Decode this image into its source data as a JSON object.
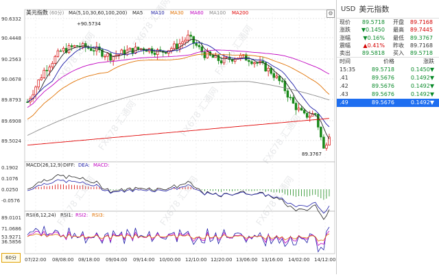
{
  "main_legend": {
    "title": "美元指数",
    "period_hint": "(60分)",
    "ma_label": "MA(5,10,30,60,100,200)",
    "ma5": "MA5",
    "ma10": "MA10",
    "ma30": "MA30",
    "ma60": "MA60",
    "ma100": "MA100",
    "ma200": "MA200"
  },
  "main_axis": [
    "90.6332",
    "90.4448",
    "90.2563",
    "90.0678",
    "89.8793",
    "89.6908",
    "89.5024"
  ],
  "high_annotation": "+90.5734",
  "low_annotation": "89.3767",
  "macd_legend": {
    "label": "MACD(26,12,9)",
    "diff": "DIFF:",
    "dea": "DEA:",
    "macd": "MACD:"
  },
  "macd_axis": [
    "0.1902",
    "0.1076",
    "0.0250",
    "-0.0576"
  ],
  "rsi_legend": {
    "label": "RSI(6,12,24)",
    "rsi1": "RSI1:",
    "rsi2": "RSI2:",
    "rsi3": "RSI3:"
  },
  "rsi_axis": [
    "89.0101",
    "71.0686",
    "53.9271",
    "36.5856"
  ],
  "time_labels": [
    "07/22:00",
    "08/08:00",
    "08/18:00",
    "09/04:00",
    "09/14:00",
    "10/00:00",
    "12/10:00",
    "12/20:00",
    "13/06:00",
    "13/16:00",
    "14/02:00",
    "14/12:00"
  ],
  "period_button": "60分",
  "watermark": "FX678 汇通网",
  "panel": {
    "symbol": "USD",
    "name": "美元指数",
    "quotes": [
      {
        "l1": "现价",
        "v1": "89.5718",
        "c1": "green",
        "l2": "开盘",
        "v2": "89.7168",
        "c2": "red"
      },
      {
        "l1": "涨跌",
        "v1": "▼0.1450",
        "c1": "green",
        "l2": "最高",
        "v2": "89.7445",
        "c2": "red"
      },
      {
        "l1": "涨幅",
        "v1": "▼0.16%",
        "c1": "green",
        "l2": "最低",
        "v2": "89.3767",
        "c2": "green"
      },
      {
        "l1": "震幅",
        "v1": "▲0.41%",
        "c1": "red",
        "l2": "昨收",
        "v2": "89.7168",
        "c2": ""
      },
      {
        "l1": "卖出",
        "v1": "89.5818",
        "c1": "green",
        "l2": "买入",
        "v2": "89.5718",
        "c2": "green"
      }
    ],
    "table_headers": [
      "时间",
      "价格",
      "涨跌"
    ],
    "ticks": [
      {
        "t": "15:35",
        "p": "89.5718",
        "d": "0.1450▼"
      },
      {
        "t": ".41",
        "p": "89.5676",
        "d": "0.1492▼"
      },
      {
        "t": ".42",
        "p": "89.5676",
        "d": "0.1492▼"
      },
      {
        "t": ".43",
        "p": "89.5676",
        "d": "0.1492▼"
      },
      {
        "t": ".49",
        "p": "89.5676",
        "d": "0.1492▼"
      }
    ]
  }
}
